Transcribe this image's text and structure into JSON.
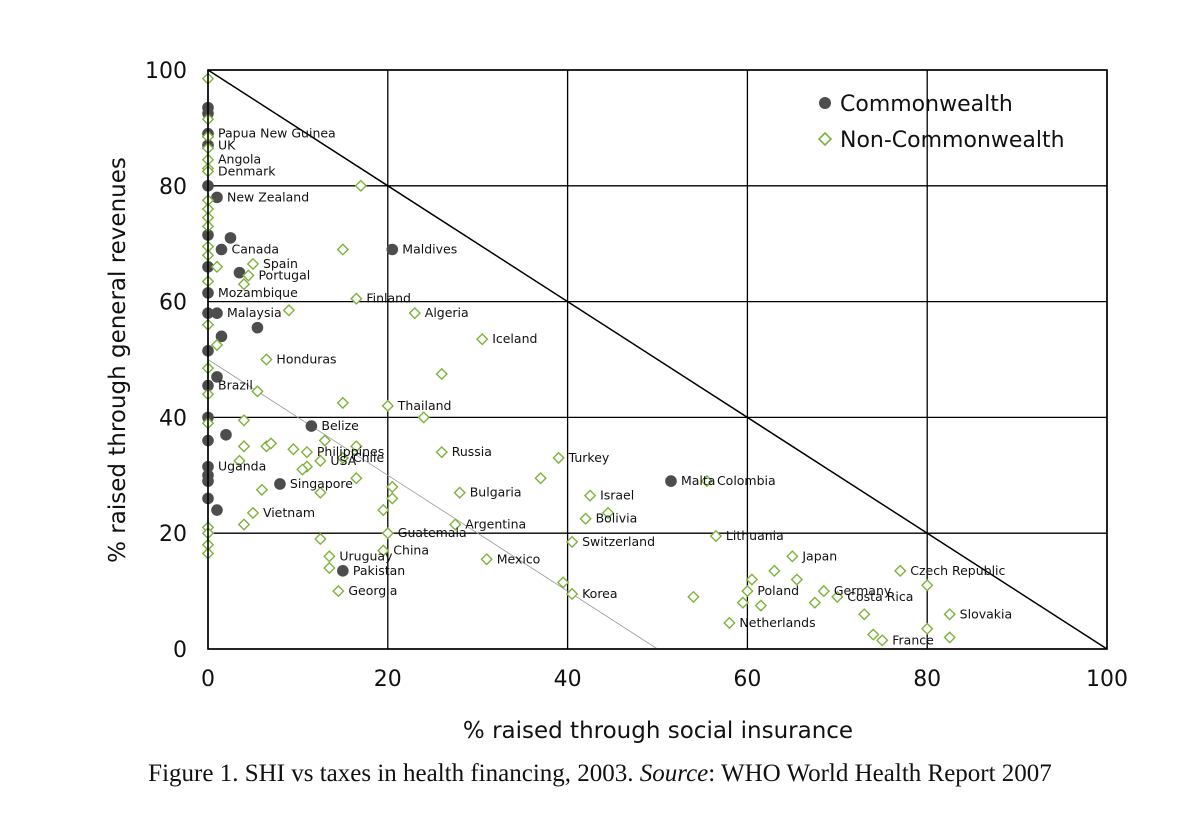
{
  "caption": {
    "prefix": "Figure 1. SHI vs taxes in health financing, 2003. ",
    "source_word": "Source",
    "suffix": ": WHO World Health Report 2007"
  },
  "chart_data": {
    "type": "scatter",
    "xlabel": "% raised through social insurance",
    "ylabel": "% raised through general revenues",
    "xlim": [
      0,
      100
    ],
    "ylim": [
      0,
      100
    ],
    "x_ticks": [
      0,
      20,
      40,
      60,
      80,
      100
    ],
    "y_ticks": [
      0,
      20,
      40,
      60,
      80,
      100
    ],
    "grid": true,
    "legend_position": "top-right",
    "colors": {
      "commonwealth": "#4d4d4d",
      "non_commonwealth": "#7fb23a",
      "axes": "#000000",
      "reference_50": "#9a9a9a"
    },
    "reference_lines": [
      {
        "x1": 0,
        "y1": 100,
        "x2": 100,
        "y2": 0,
        "style": "solid"
      },
      {
        "x1": 0,
        "y1": 50,
        "x2": 50,
        "y2": 0,
        "style": "thin"
      }
    ],
    "series": [
      {
        "name": "Commonwealth",
        "marker": "filled-circle",
        "points": [
          {
            "x": 0,
            "y": 93.5
          },
          {
            "x": 0,
            "y": 92.5
          },
          {
            "x": 0,
            "y": 89,
            "label": "Papua New Guinea"
          },
          {
            "x": 0,
            "y": 87,
            "label": "UK"
          },
          {
            "x": 0,
            "y": 80
          },
          {
            "x": 1,
            "y": 78,
            "label": "New Zealand"
          },
          {
            "x": 0,
            "y": 71.5
          },
          {
            "x": 2.5,
            "y": 71
          },
          {
            "x": 1.5,
            "y": 69,
            "label": "Canada"
          },
          {
            "x": 0,
            "y": 66
          },
          {
            "x": 3.5,
            "y": 65
          },
          {
            "x": 0,
            "y": 61.5,
            "label": "Mozambique"
          },
          {
            "x": 20.5,
            "y": 69,
            "label": "Maldives"
          },
          {
            "x": 0,
            "y": 58
          },
          {
            "x": 1,
            "y": 58,
            "label": "Malaysia"
          },
          {
            "x": 5.5,
            "y": 55.5
          },
          {
            "x": 1.5,
            "y": 54
          },
          {
            "x": 0,
            "y": 51.5
          },
          {
            "x": 1,
            "y": 47
          },
          {
            "x": 0,
            "y": 45.5,
            "label": "Brazil"
          },
          {
            "x": 0,
            "y": 40
          },
          {
            "x": 2,
            "y": 37
          },
          {
            "x": 0,
            "y": 36
          },
          {
            "x": 11.5,
            "y": 38.5,
            "label": "Belize"
          },
          {
            "x": 0,
            "y": 31.5,
            "label": "Uganda"
          },
          {
            "x": 0,
            "y": 30
          },
          {
            "x": 0,
            "y": 29
          },
          {
            "x": 8,
            "y": 28.5,
            "label": "Singapore"
          },
          {
            "x": 0,
            "y": 26
          },
          {
            "x": 1,
            "y": 24
          },
          {
            "x": 51.5,
            "y": 29,
            "label": "Malta"
          },
          {
            "x": 15,
            "y": 13.5,
            "label": "Pakistan"
          }
        ]
      },
      {
        "name": "Non-Commonwealth",
        "marker": "open-diamond",
        "points": [
          {
            "x": 0,
            "y": 98.5
          },
          {
            "x": 0,
            "y": 91.5
          },
          {
            "x": 0,
            "y": 88.5
          },
          {
            "x": 0,
            "y": 86.5
          },
          {
            "x": 0,
            "y": 84.5,
            "label": "Angola"
          },
          {
            "x": 0,
            "y": 83
          },
          {
            "x": 0,
            "y": 82.5,
            "label": "Denmark"
          },
          {
            "x": 0,
            "y": 77.5
          },
          {
            "x": 0,
            "y": 76
          },
          {
            "x": 0,
            "y": 74.5
          },
          {
            "x": 0,
            "y": 73
          },
          {
            "x": 17,
            "y": 80
          },
          {
            "x": 0,
            "y": 69.5
          },
          {
            "x": 0,
            "y": 68
          },
          {
            "x": 15,
            "y": 69
          },
          {
            "x": 5,
            "y": 66.5,
            "label": "Spain"
          },
          {
            "x": 1,
            "y": 66
          },
          {
            "x": 4.5,
            "y": 64.5,
            "label": "Portugal"
          },
          {
            "x": 4,
            "y": 63
          },
          {
            "x": 0,
            "y": 63.5
          },
          {
            "x": 16.5,
            "y": 60.5,
            "label": "Finland"
          },
          {
            "x": 23,
            "y": 58,
            "label": "Algeria"
          },
          {
            "x": 9,
            "y": 58.5
          },
          {
            "x": 0,
            "y": 56
          },
          {
            "x": 30.5,
            "y": 53.5,
            "label": "Iceland"
          },
          {
            "x": 1,
            "y": 52.5
          },
          {
            "x": 6.5,
            "y": 50,
            "label": "Honduras"
          },
          {
            "x": 26,
            "y": 47.5
          },
          {
            "x": 0,
            "y": 48.5
          },
          {
            "x": 0,
            "y": 44
          },
          {
            "x": 5.5,
            "y": 44.5
          },
          {
            "x": 15,
            "y": 42.5
          },
          {
            "x": 20,
            "y": 42,
            "label": "Thailand"
          },
          {
            "x": 24,
            "y": 40
          },
          {
            "x": 4,
            "y": 39.5
          },
          {
            "x": 0,
            "y": 39
          },
          {
            "x": 13,
            "y": 36
          },
          {
            "x": 16.5,
            "y": 35
          },
          {
            "x": 11,
            "y": 34,
            "label": "Philippines"
          },
          {
            "x": 4,
            "y": 35
          },
          {
            "x": 6.5,
            "y": 35
          },
          {
            "x": 7,
            "y": 35.5
          },
          {
            "x": 9.5,
            "y": 34.5
          },
          {
            "x": 26,
            "y": 34,
            "label": "Russia"
          },
          {
            "x": 15,
            "y": 33,
            "label": "Chile"
          },
          {
            "x": 12.5,
            "y": 32.5,
            "label": "USA"
          },
          {
            "x": 3.5,
            "y": 32.5
          },
          {
            "x": 11,
            "y": 31.5
          },
          {
            "x": 10.5,
            "y": 31
          },
          {
            "x": 39,
            "y": 33,
            "label": "Turkey"
          },
          {
            "x": 37,
            "y": 29.5
          },
          {
            "x": 16.5,
            "y": 29.5
          },
          {
            "x": 55.5,
            "y": 29,
            "label": "Colombia"
          },
          {
            "x": 6,
            "y": 27.5
          },
          {
            "x": 12.5,
            "y": 27
          },
          {
            "x": 20.5,
            "y": 28
          },
          {
            "x": 20.5,
            "y": 26
          },
          {
            "x": 28,
            "y": 27,
            "label": "Bulgaria"
          },
          {
            "x": 42.5,
            "y": 26.5,
            "label": "Israel"
          },
          {
            "x": 44.5,
            "y": 23.5
          },
          {
            "x": 42,
            "y": 22.5,
            "label": "Bolivia"
          },
          {
            "x": 19.5,
            "y": 24
          },
          {
            "x": 5,
            "y": 23.5,
            "label": "Vietnam"
          },
          {
            "x": 4,
            "y": 21.5
          },
          {
            "x": 27.5,
            "y": 21.5,
            "label": "Argentina"
          },
          {
            "x": 0,
            "y": 21
          },
          {
            "x": 0,
            "y": 20
          },
          {
            "x": 0,
            "y": 18
          },
          {
            "x": 20,
            "y": 20,
            "label": "Guatemala"
          },
          {
            "x": 12.5,
            "y": 19
          },
          {
            "x": 40.5,
            "y": 18.5,
            "label": "Switzerland"
          },
          {
            "x": 56.5,
            "y": 19.5,
            "label": "Lithuania"
          },
          {
            "x": 19.5,
            "y": 17,
            "label": "China"
          },
          {
            "x": 0,
            "y": 16.5
          },
          {
            "x": 13.5,
            "y": 16,
            "label": "Uruguay"
          },
          {
            "x": 31,
            "y": 15.5,
            "label": "Mexico"
          },
          {
            "x": 65,
            "y": 16,
            "label": "Japan"
          },
          {
            "x": 13.5,
            "y": 14
          },
          {
            "x": 63,
            "y": 13.5
          },
          {
            "x": 77,
            "y": 13.5,
            "label": "Czech Republic"
          },
          {
            "x": 60.5,
            "y": 12
          },
          {
            "x": 65.5,
            "y": 12
          },
          {
            "x": 39.5,
            "y": 11.5
          },
          {
            "x": 80,
            "y": 11
          },
          {
            "x": 68.5,
            "y": 10,
            "label": "Germany"
          },
          {
            "x": 60,
            "y": 10,
            "label": "Poland"
          },
          {
            "x": 70,
            "y": 9,
            "label": "Costa Rica"
          },
          {
            "x": 14.5,
            "y": 10,
            "label": "Georgia"
          },
          {
            "x": 40.5,
            "y": 9.5,
            "label": "Korea"
          },
          {
            "x": 54,
            "y": 9
          },
          {
            "x": 59.5,
            "y": 8
          },
          {
            "x": 61.5,
            "y": 7.5
          },
          {
            "x": 67.5,
            "y": 8
          },
          {
            "x": 73,
            "y": 6
          },
          {
            "x": 82.5,
            "y": 6,
            "label": "Slovakia"
          },
          {
            "x": 58,
            "y": 4.5,
            "label": "Netherlands"
          },
          {
            "x": 80,
            "y": 3.5
          },
          {
            "x": 74,
            "y": 2.5
          },
          {
            "x": 75,
            "y": 1.5,
            "label": "France"
          },
          {
            "x": 82.5,
            "y": 2
          }
        ]
      }
    ]
  }
}
